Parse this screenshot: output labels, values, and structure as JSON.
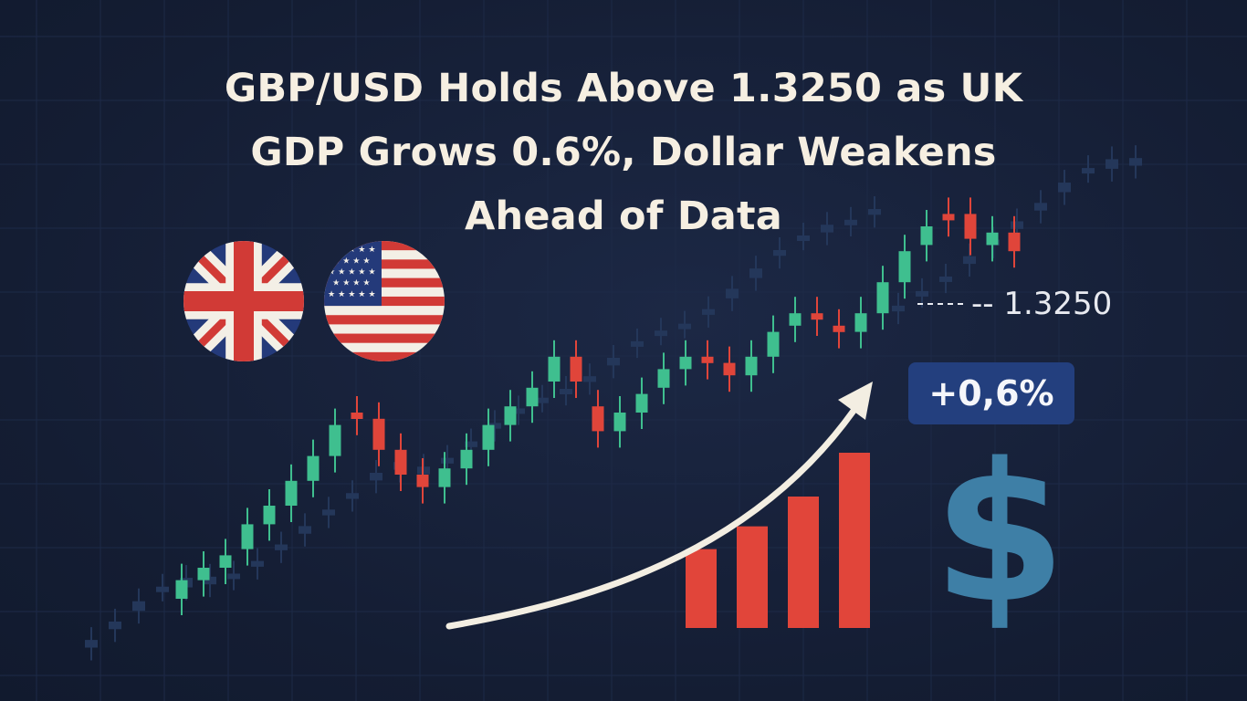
{
  "headline": {
    "line1": "GBP/USD Holds Above 1.3250 as UK",
    "line2": "GDP Grows 0.6%, Dollar Weakens",
    "line3": "Ahead of Data"
  },
  "price_label": "-- 1.3250",
  "growth_badge": "+0,6%",
  "dollar_symbol": "$",
  "colors": {
    "background": "#16213a",
    "bull_candle": "#3fbf8f",
    "bear_candle": "#e0453a",
    "ghost_candle": "#24375a",
    "bar_chart": "#e1453a",
    "arrow": "#f3eee2",
    "badge": "#233f7e",
    "dollar": "#3e7fa6",
    "text": "#f6efe2"
  },
  "icons": [
    "uk-flag-icon",
    "us-flag-icon",
    "dollar-icon",
    "trend-arrow-icon"
  ],
  "chart_data": {
    "type": "candlestick",
    "candles": [
      {
        "o": 0.1,
        "c": 0.16
      },
      {
        "o": 0.16,
        "c": 0.2
      },
      {
        "o": 0.2,
        "c": 0.24
      },
      {
        "o": 0.26,
        "c": 0.34
      },
      {
        "o": 0.34,
        "c": 0.4
      },
      {
        "o": 0.4,
        "c": 0.48
      },
      {
        "o": 0.48,
        "c": 0.56
      },
      {
        "o": 0.56,
        "c": 0.66
      },
      {
        "o": 0.7,
        "c": 0.68
      },
      {
        "o": 0.68,
        "c": 0.58
      },
      {
        "o": 0.58,
        "c": 0.5
      },
      {
        "o": 0.5,
        "c": 0.46
      },
      {
        "o": 0.46,
        "c": 0.52
      },
      {
        "o": 0.52,
        "c": 0.58
      },
      {
        "o": 0.58,
        "c": 0.66
      },
      {
        "o": 0.66,
        "c": 0.72
      },
      {
        "o": 0.72,
        "c": 0.78
      },
      {
        "o": 0.8,
        "c": 0.88
      },
      {
        "o": 0.88,
        "c": 0.8
      },
      {
        "o": 0.72,
        "c": 0.64
      },
      {
        "o": 0.64,
        "c": 0.7
      },
      {
        "o": 0.7,
        "c": 0.76
      },
      {
        "o": 0.78,
        "c": 0.84
      },
      {
        "o": 0.84,
        "c": 0.88
      },
      {
        "o": 0.88,
        "c": 0.86
      },
      {
        "o": 0.86,
        "c": 0.82
      },
      {
        "o": 0.82,
        "c": 0.88
      },
      {
        "o": 0.88,
        "c": 0.96
      },
      {
        "o": 0.98,
        "c": 1.02
      },
      {
        "o": 1.02,
        "c": 1.0
      },
      {
        "o": 0.98,
        "c": 0.96
      },
      {
        "o": 0.96,
        "c": 1.02
      },
      {
        "o": 1.02,
        "c": 1.12
      },
      {
        "o": 1.12,
        "c": 1.22
      },
      {
        "o": 1.24,
        "c": 1.3
      },
      {
        "o": 1.34,
        "c": 1.32
      },
      {
        "o": 1.34,
        "c": 1.26
      },
      {
        "o": 1.24,
        "c": 1.28
      },
      {
        "o": 1.28,
        "c": 1.22
      }
    ],
    "bars": [
      0.45,
      0.58,
      0.75,
      1.0
    ],
    "trend_note": "upward"
  }
}
